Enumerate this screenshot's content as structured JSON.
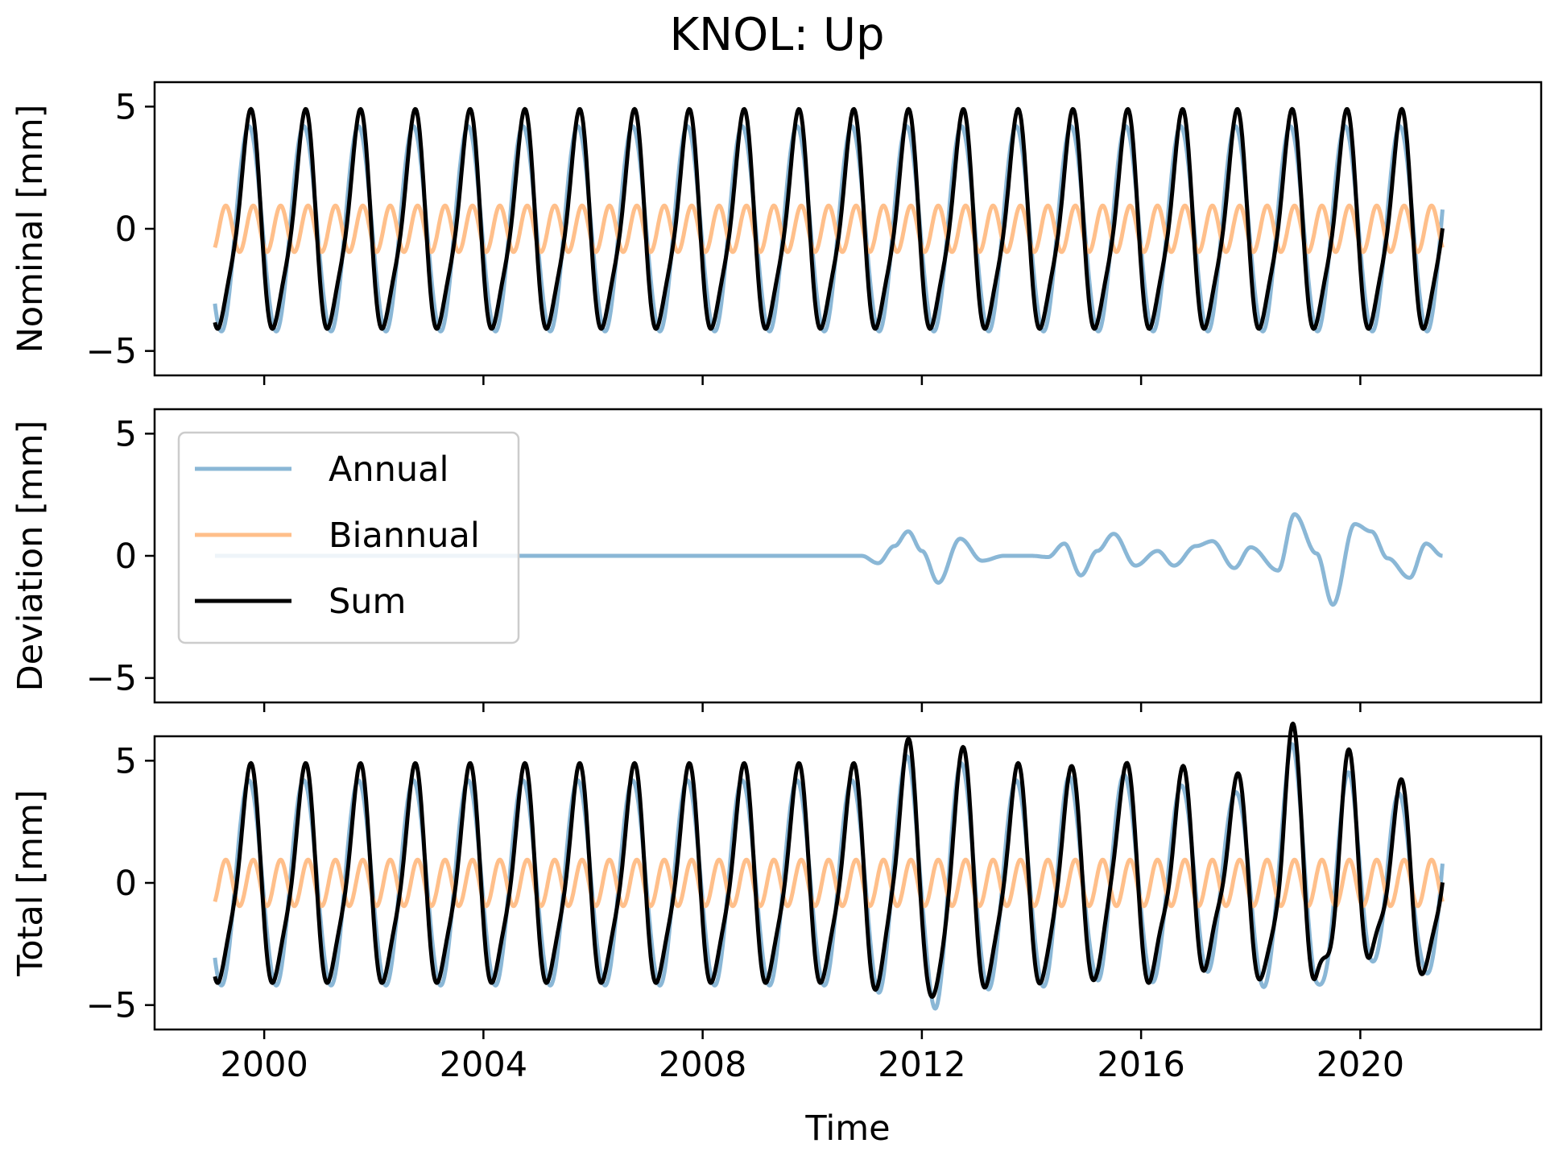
{
  "chart_data": {
    "type": "line",
    "title": "KNOL: Up",
    "xlabel": "Time",
    "xlim": [
      1998.0,
      2023.3
    ],
    "xticks": [
      2000,
      2004,
      2008,
      2012,
      2016,
      2020
    ],
    "shared_x": true,
    "legend": {
      "placement": "upper-left of middle panel",
      "entries": [
        "Annual",
        "Biannual",
        "Sum"
      ]
    },
    "series_style": {
      "Annual": "#8ab7d6",
      "Biannual": "#ffbf8a",
      "Sum": "#000000"
    },
    "model": {
      "x_start": 1999.1,
      "x_end": 2021.5,
      "annual": {
        "amplitude": 4.2,
        "peak_phase_year": 0.72
      },
      "biannual": {
        "amplitude": 0.95,
        "peak_phase_year": 0.3
      }
    },
    "deviation_points": {
      "x": [
        1999.1,
        2010.9,
        2011.2,
        2011.5,
        2011.75,
        2012.0,
        2012.3,
        2012.7,
        2013.1,
        2013.5,
        2014.0,
        2014.3,
        2014.6,
        2014.9,
        2015.2,
        2015.5,
        2015.9,
        2016.3,
        2016.6,
        2017.0,
        2017.3,
        2017.7,
        2018.0,
        2018.5,
        2018.8,
        2019.2,
        2019.5,
        2019.9,
        2020.2,
        2020.5,
        2020.9,
        2021.2,
        2021.5
      ],
      "y": [
        0,
        0,
        -0.3,
        0.4,
        1.0,
        0.2,
        -1.1,
        0.7,
        -0.2,
        0.0,
        0.0,
        -0.05,
        0.5,
        -0.8,
        0.2,
        0.9,
        -0.4,
        0.2,
        -0.4,
        0.4,
        0.6,
        -0.5,
        0.35,
        -0.6,
        1.7,
        0.1,
        -2.0,
        1.3,
        1.0,
        -0.1,
        -0.9,
        0.5,
        0.0
      ]
    },
    "panels": [
      {
        "name": "nominal",
        "ylabel": "Nominal [mm]",
        "ylim": [
          -6,
          6
        ],
        "yticks": [
          -5,
          0,
          5
        ],
        "series": [
          "Annual",
          "Biannual",
          "Sum"
        ]
      },
      {
        "name": "deviation",
        "ylabel": "Deviation [mm]",
        "ylim": [
          -6,
          6
        ],
        "yticks": [
          -5,
          0,
          5
        ],
        "series": [
          "Annual"
        ]
      },
      {
        "name": "total",
        "ylabel": "Total [mm]",
        "ylim": [
          -6,
          6
        ],
        "yticks": [
          -5,
          0,
          5
        ],
        "series": [
          "Annual",
          "Biannual",
          "Sum"
        ]
      }
    ]
  }
}
